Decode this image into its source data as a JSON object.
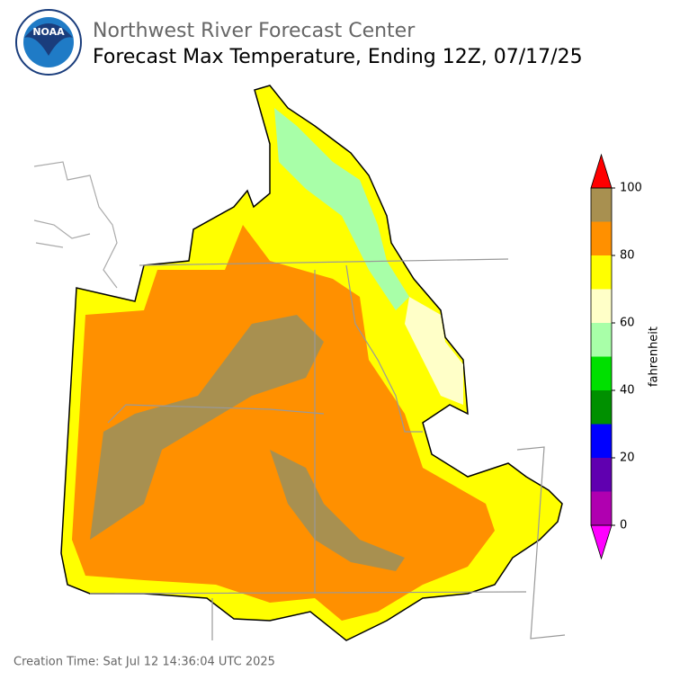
{
  "header": {
    "logo_text": "NOAA",
    "title": "Northwest River Forecast Center",
    "subtitle": "Forecast Max Temperature, Ending 12Z, 07/17/25"
  },
  "colorbar": {
    "label": "fahrenheit",
    "bounds": [
      0,
      10,
      20,
      30,
      40,
      50,
      60,
      70,
      80,
      90,
      100
    ],
    "colors": [
      "#b000b0",
      "#6000b0",
      "#0000ff",
      "#009000",
      "#00e000",
      "#a8ffa8",
      "#ffffc8",
      "#ffff00",
      "#ff9000",
      "#a89050"
    ],
    "under_color": "#ff00ff",
    "over_color": "#ff0000",
    "ticks": [
      0,
      20,
      40,
      60,
      80,
      100
    ]
  },
  "footer": {
    "creation_time": "Creation Time: Sat Jul 12 14:36:04 UTC 2025"
  }
}
